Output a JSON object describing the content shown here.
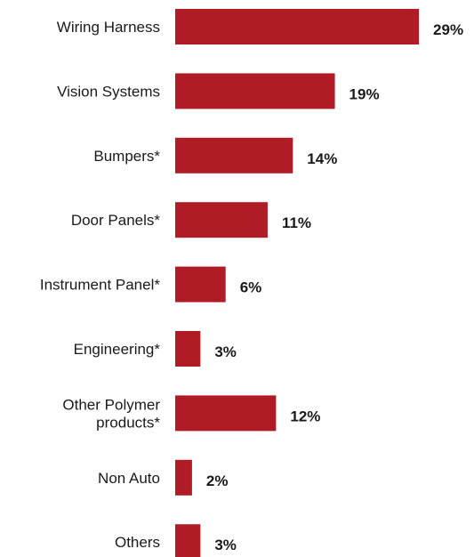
{
  "chart_data": {
    "type": "bar",
    "orientation": "horizontal",
    "categories": [
      [
        "Wiring Harness"
      ],
      [
        "Vision Systems"
      ],
      [
        "Bumpers*"
      ],
      [
        "Door Panels*"
      ],
      [
        "Instrument Panel*"
      ],
      [
        "Engineering*"
      ],
      [
        "Other Polymer",
        "products*"
      ],
      [
        "Non Auto"
      ],
      [
        "Others"
      ]
    ],
    "values": [
      29,
      19,
      14,
      11,
      6,
      3,
      12,
      2,
      3
    ],
    "value_labels": [
      "29%",
      "19%",
      "14%",
      "11%",
      "6%",
      "3%",
      "12%",
      "2%",
      "3%"
    ],
    "unit": "%",
    "xlim": [
      0,
      30
    ],
    "grid": false,
    "legend": "none",
    "bar_color": "#b01c26"
  }
}
